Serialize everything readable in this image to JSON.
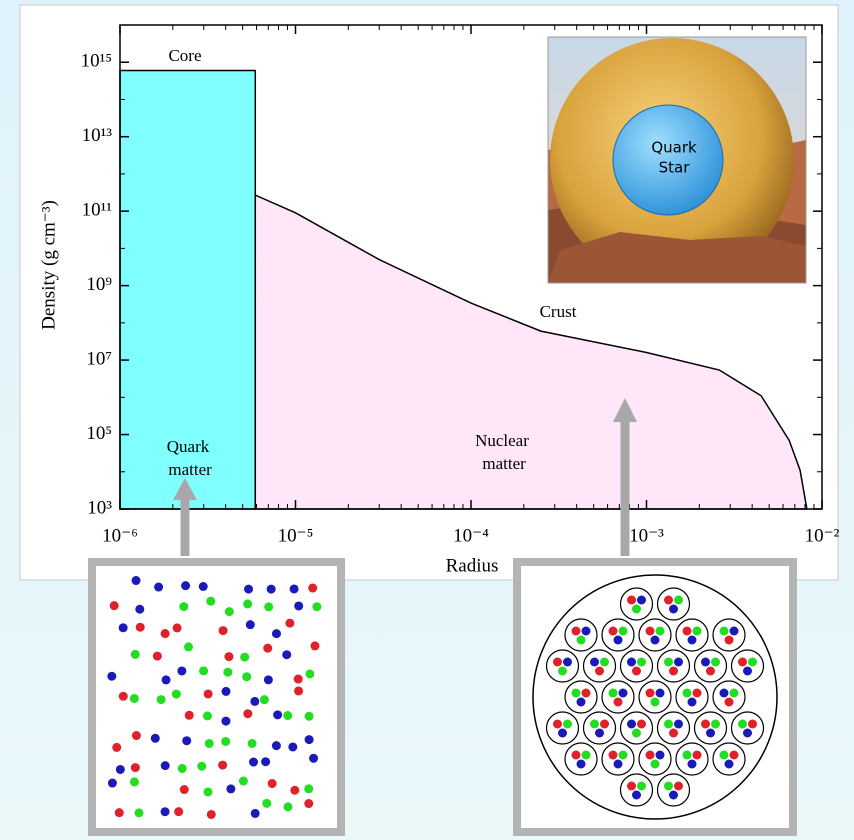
{
  "chart_data": {
    "type": "area",
    "xlabel": "Radius",
    "ylabel": "Density (g cm⁻³)",
    "xscale": "log",
    "yscale": "log",
    "xlim": [
      1e-06,
      0.01
    ],
    "ylim": [
      1000,
      1e+16
    ],
    "xticks": [
      {
        "value": 1e-06,
        "label": "10⁻⁶"
      },
      {
        "value": 1e-05,
        "label": "10⁻⁵"
      },
      {
        "value": 0.0001,
        "label": "10⁻⁴"
      },
      {
        "value": 0.001,
        "label": "10⁻³"
      },
      {
        "value": 0.01,
        "label": "10⁻²"
      }
    ],
    "yticks": [
      {
        "value": 1000,
        "label": "10³"
      },
      {
        "value": 100000,
        "label": "10⁵"
      },
      {
        "value": 10000000,
        "label": "10⁷"
      },
      {
        "value": 1000000000,
        "label": "10⁹"
      },
      {
        "value": 100000000000,
        "label": "10¹¹"
      },
      {
        "value": 10000000000000,
        "label": "10¹³"
      },
      {
        "value": 1000000000000000,
        "label": "10¹⁵"
      }
    ],
    "series": [
      {
        "color": "#80ffff",
        "x": [
          1e-06,
          5.9e-06
        ],
        "values": [
          600000000000000.0,
          600000000000000.0
        ]
      },
      {
        "color": "#ffe6f8",
        "x": [
          5.9e-06,
          1e-05,
          3e-05,
          0.0001,
          0.00025,
          0.001,
          0.0026,
          0.0045,
          0.0065,
          0.0075,
          0.0082
        ],
        "values": [
          270000000000.0,
          90000000000.0,
          5000000000.0,
          340000000.0,
          60000000.0,
          16000000.0,
          5400000.0,
          1100000.0,
          70000.0,
          11000.0,
          1000
        ]
      }
    ],
    "annotations": [
      "Core",
      "Quark matter",
      "Crust",
      "Nuclear matter"
    ]
  },
  "inset": {
    "lines": [
      "Quark",
      "Star"
    ]
  }
}
